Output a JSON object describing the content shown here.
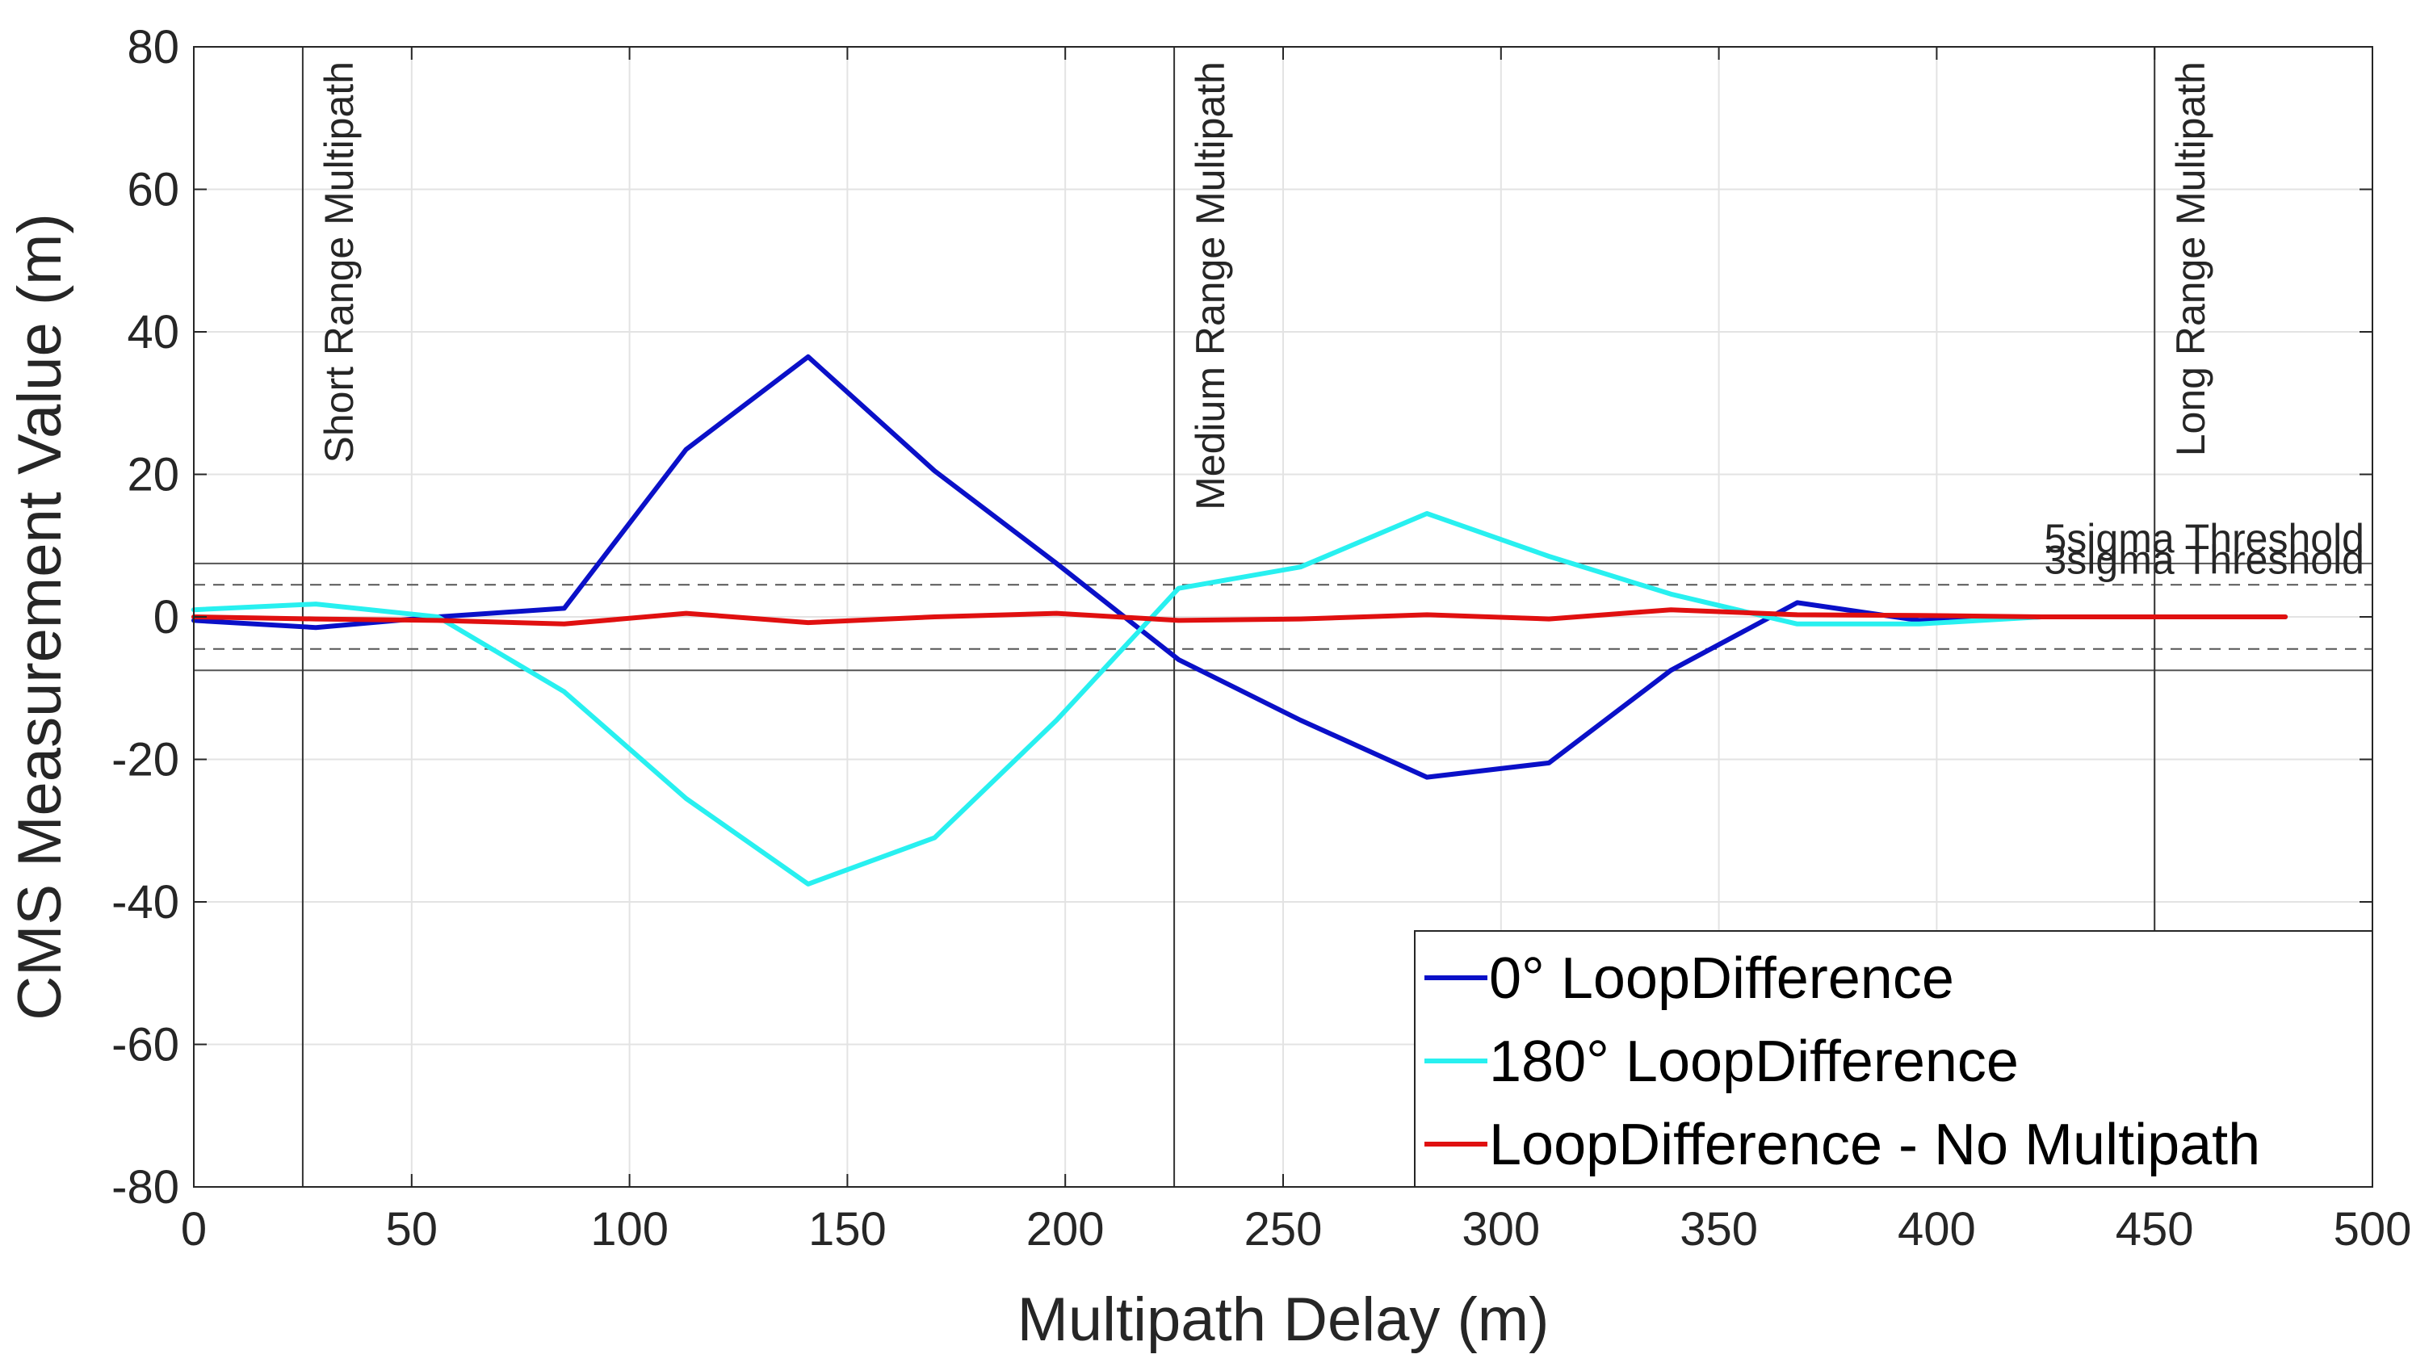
{
  "chart_data": {
    "type": "line",
    "title": "",
    "xlabel": "Multipath Delay (m)",
    "ylabel": "CMS Measurement Value (m)",
    "xlim": [
      0,
      500
    ],
    "ylim": [
      -80,
      80
    ],
    "xticks": [
      "0",
      "50",
      "100",
      "150",
      "200",
      "250",
      "300",
      "350",
      "400",
      "450",
      "500"
    ],
    "yticks": [
      "80",
      "60",
      "40",
      "20",
      "0",
      "-20",
      "-40",
      "-60",
      "-80"
    ],
    "grid": true,
    "legend_position": "bottom-right",
    "series": [
      {
        "name": "0° LoopDifference",
        "color": "#0a10c8",
        "x": [
          0,
          28,
          56,
          85,
          113,
          141,
          170,
          198,
          226,
          254,
          283,
          311,
          339,
          368,
          396,
          424,
          452,
          480
        ],
        "y": [
          -0.5,
          -1.5,
          0,
          1.2,
          23.5,
          36.5,
          20.5,
          7.5,
          -6,
          -14.5,
          -22.5,
          -20.5,
          -7.5,
          2,
          -0.5,
          0,
          0,
          0
        ]
      },
      {
        "name": "180° LoopDifference",
        "color": "#28f0f0",
        "x": [
          0,
          28,
          56,
          85,
          113,
          141,
          170,
          198,
          226,
          254,
          283,
          311,
          339,
          368,
          396,
          424,
          452,
          480
        ],
        "y": [
          1,
          1.8,
          0,
          -10.5,
          -25.5,
          -37.5,
          -31,
          -14.5,
          4,
          7,
          14.5,
          8.5,
          3.2,
          -1,
          -1,
          0,
          0,
          0
        ]
      },
      {
        "name": "LoopDifference - No Multipath",
        "color": "#e01010",
        "x": [
          0,
          28,
          56,
          85,
          113,
          141,
          170,
          198,
          226,
          254,
          283,
          311,
          339,
          368,
          396,
          424,
          452,
          480
        ],
        "y": [
          0,
          -0.3,
          -0.5,
          -1,
          0.5,
          -0.8,
          0,
          0.5,
          -0.5,
          -0.3,
          0.3,
          -0.3,
          1,
          0.3,
          0.2,
          0,
          0,
          0
        ]
      }
    ],
    "threshold_lines": [
      {
        "label": "5sigma Threshold",
        "y": 7.5,
        "style": "solid"
      },
      {
        "label": "",
        "y": -7.5,
        "style": "solid"
      },
      {
        "label": "3sigma Threshold",
        "y": 4.5,
        "style": "dashed"
      },
      {
        "label": "",
        "y": -4.5,
        "style": "dashed"
      }
    ],
    "vertical_markers": [
      {
        "label": "Short Range Multipath",
        "x": 25
      },
      {
        "label": "Medium Range Multipath",
        "x": 225
      },
      {
        "label": "Long Range Multipath",
        "x": 450
      }
    ]
  }
}
